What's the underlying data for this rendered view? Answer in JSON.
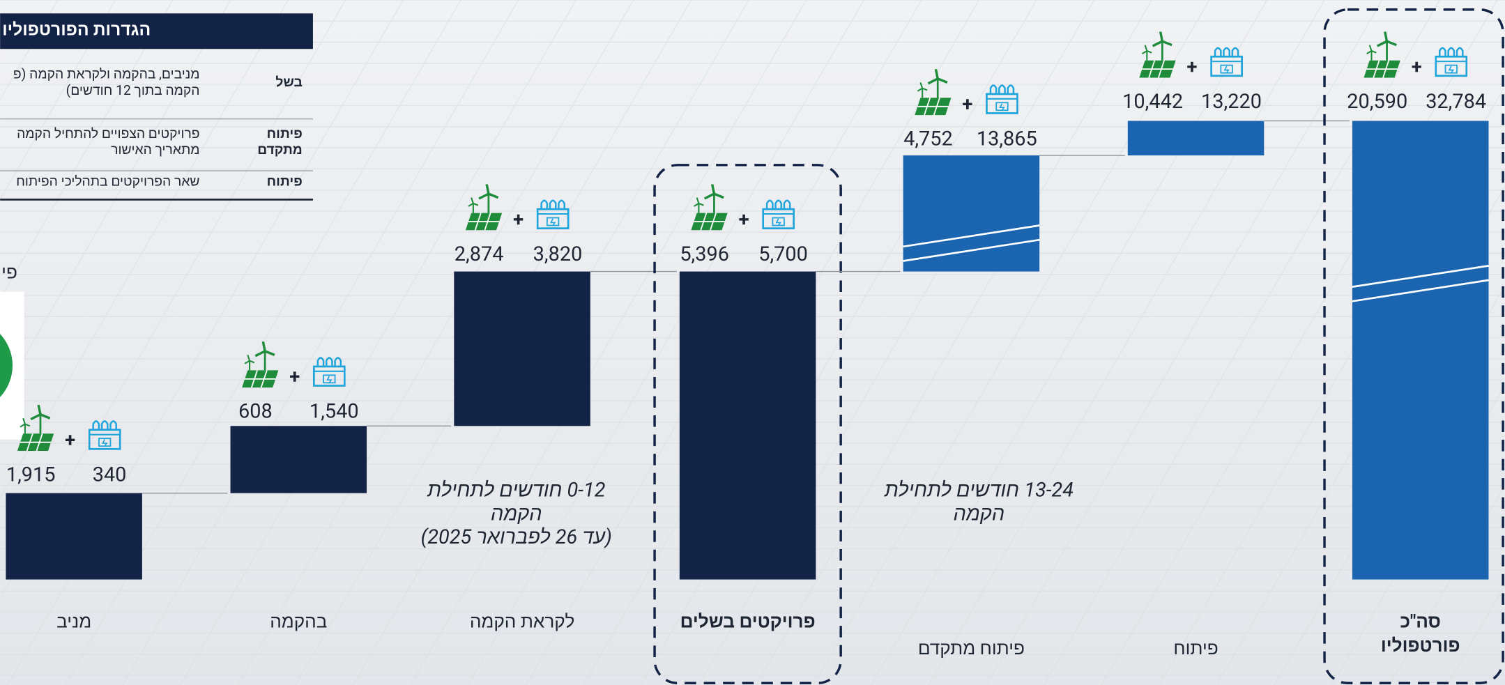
{
  "definitions": {
    "title": "הגדרות הפורטפוליו",
    "rows": [
      {
        "term": [
          "בשל"
        ],
        "text": [
          "מניבים, בהקמה ולקראת הקמה (פ",
          "הקמה בתוך 12 חודשים)"
        ]
      },
      {
        "term": [
          "פיתוח",
          "מתקדם"
        ],
        "text": [
          "פרויקטים הצפויים להתחיל הקמה",
          "מתאריך האישור"
        ]
      },
      {
        "term": [
          "פיתוח"
        ],
        "text": [
          "שאר הפרויקטים בתהליכי הפיתוח"
        ]
      }
    ]
  },
  "side_label": "פי",
  "columns": [
    {
      "label": [
        "מניב"
      ],
      "mw": "1,915",
      "mwh": "340"
    },
    {
      "label": [
        "בהקמה"
      ],
      "mw": "608",
      "mwh": "1,540"
    },
    {
      "label": [
        "לקראת הקמה"
      ],
      "mw": "2,874",
      "mwh": "3,820"
    },
    {
      "label": [
        "פרויקטים בשלים"
      ],
      "mw": "5,396",
      "mwh": "5,700"
    },
    {
      "label": [
        "פיתוח מתקדם"
      ],
      "mw": "4,752",
      "mwh": "13,865"
    },
    {
      "label": [
        "פיתוח"
      ],
      "mw": "10,442",
      "mwh": "13,220"
    },
    {
      "label": [
        "סה\"כ",
        "פורטפוליו"
      ],
      "mw": "20,590",
      "mwh": "32,784"
    }
  ],
  "notes": [
    {
      "lines": [
        "0-12 חודשים לתחילת",
        "הקמה",
        "(עד 26 לפברואר 2025)"
      ]
    },
    {
      "lines": [
        "13-24 חודשים לתחילת",
        "הקמה"
      ]
    }
  ]
}
